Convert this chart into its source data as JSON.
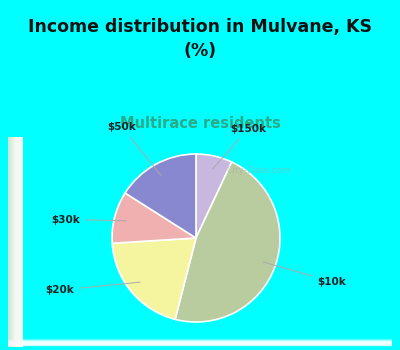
{
  "title": "Income distribution in Mulvane, KS\n(%)",
  "subtitle": "Multirace residents",
  "labels": [
    "$150k",
    "$10k",
    "$20k",
    "$30k",
    "$50k"
  ],
  "values": [
    7,
    47,
    20,
    10,
    16
  ],
  "colors": [
    "#c8b8e0",
    "#b8ccA0",
    "#f5f5a0",
    "#f0b0b0",
    "#8888d0"
  ],
  "bg_color": "#00ffff",
  "chart_bg_left": "#b8ddb8",
  "chart_bg_right": "#e8f5f0",
  "title_color": "#111111",
  "subtitle_color": "#2aaa88",
  "startangle": 90,
  "watermark": "City-Data.com"
}
